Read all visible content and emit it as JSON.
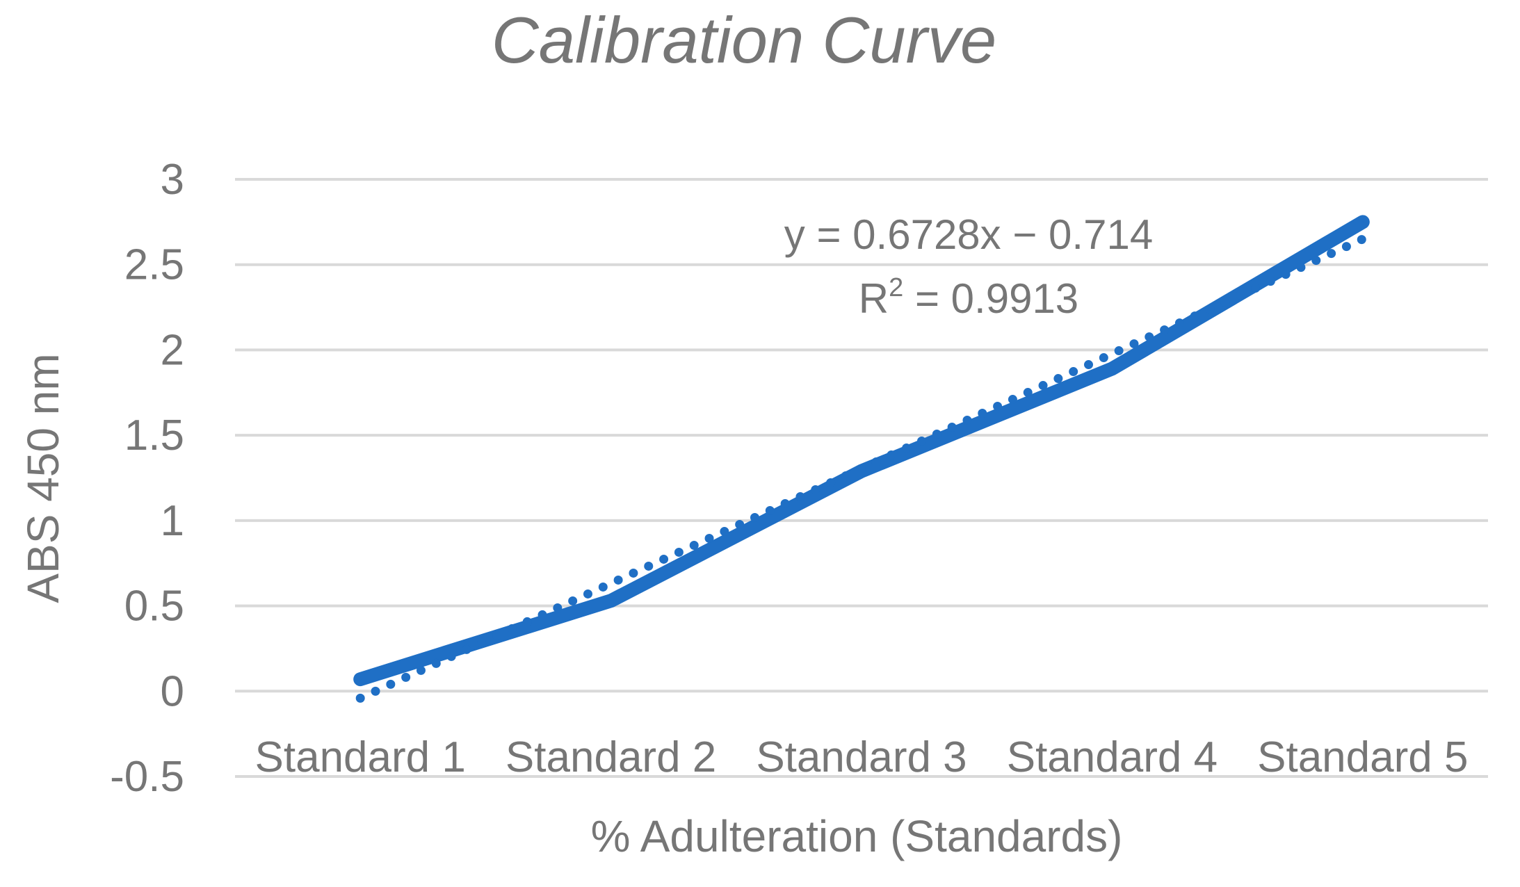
{
  "chart_data": {
    "type": "line",
    "title": "Calibration Curve",
    "xlabel": "% Adulteration (Standards)",
    "ylabel": "ABS 450 nm",
    "categories": [
      "Standard 1",
      "Standard 2",
      "Standard 3",
      "Standard 4",
      "Standard 5"
    ],
    "ylim": [
      -0.5,
      3
    ],
    "yticks": [
      {
        "value": 3,
        "label": "3"
      },
      {
        "value": 2.5,
        "label": "2.5"
      },
      {
        "value": 2,
        "label": "2"
      },
      {
        "value": 1.5,
        "label": "1.5"
      },
      {
        "value": 1,
        "label": "1"
      },
      {
        "value": 0.5,
        "label": "0.5"
      },
      {
        "value": 0,
        "label": "0"
      },
      {
        "value": -0.5,
        "label": "-0.5"
      }
    ],
    "grid": true,
    "series": [
      {
        "values": [
          0.07,
          0.53,
          1.29,
          1.89,
          2.75
        ],
        "color": "#1f6fc5"
      }
    ],
    "trendline": {
      "type": "linear",
      "slope": 0.6728,
      "intercept": -0.714,
      "style": "dotted",
      "color": "#1f6fc5",
      "equation_label": "y = 0.6728x − 0.714",
      "r2_prefix": "R",
      "r2_exponent": "2",
      "r2_suffix": " = 0.9913"
    }
  }
}
